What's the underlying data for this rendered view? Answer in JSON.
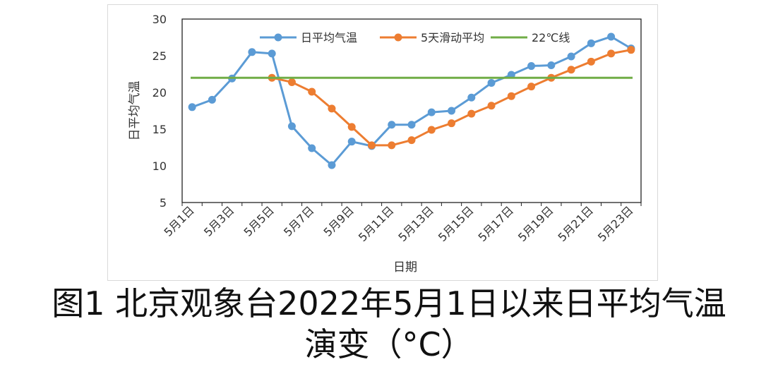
{
  "caption": {
    "line1": "图1 北京观象台2022年5月1日以来日平均气温",
    "line2": "演变（°C）"
  },
  "chart_data": {
    "type": "line",
    "title": "",
    "xlabel": "日期",
    "ylabel": "日平均气温",
    "ylim": [
      5,
      30
    ],
    "yticks": [
      5,
      10,
      15,
      20,
      25,
      30
    ],
    "grid": false,
    "legend_position": "top",
    "categories": [
      "5月1日",
      "5月2日",
      "5月3日",
      "5月4日",
      "5月5日",
      "5月6日",
      "5月7日",
      "5月8日",
      "5月9日",
      "5月10日",
      "5月11日",
      "5月12日",
      "5月13日",
      "5月14日",
      "5月15日",
      "5月16日",
      "5月17日",
      "5月18日",
      "5月19日",
      "5月20日",
      "5月21日",
      "5月22日",
      "5月23日"
    ],
    "x_tick_labels": [
      "5月1日",
      "5月3日",
      "5月5日",
      "5月7日",
      "5月9日",
      "5月11日",
      "5月13日",
      "5月15日",
      "5月17日",
      "5月19日",
      "5月21日",
      "5月23日"
    ],
    "series": [
      {
        "name": "日平均气温",
        "color": "#5b9bd5",
        "values": [
          18.0,
          19.0,
          21.9,
          25.5,
          25.3,
          15.4,
          12.4,
          10.1,
          13.3,
          12.7,
          15.6,
          15.6,
          17.3,
          17.5,
          19.3,
          21.3,
          22.4,
          23.6,
          23.7,
          24.9,
          26.7,
          27.6,
          26.0
        ]
      },
      {
        "name": "5天滑动平均",
        "color": "#ed7d31",
        "values": [
          null,
          null,
          null,
          null,
          22.0,
          21.4,
          20.1,
          17.8,
          15.3,
          12.8,
          12.8,
          13.5,
          14.9,
          15.8,
          17.1,
          18.2,
          19.5,
          20.8,
          22.0,
          23.1,
          24.2,
          25.3,
          25.8
        ]
      },
      {
        "name": "22℃线",
        "color": "#70ad47",
        "values": [
          22,
          22,
          22,
          22,
          22,
          22,
          22,
          22,
          22,
          22,
          22,
          22,
          22,
          22,
          22,
          22,
          22,
          22,
          22,
          22,
          22,
          22,
          22
        ]
      }
    ]
  }
}
